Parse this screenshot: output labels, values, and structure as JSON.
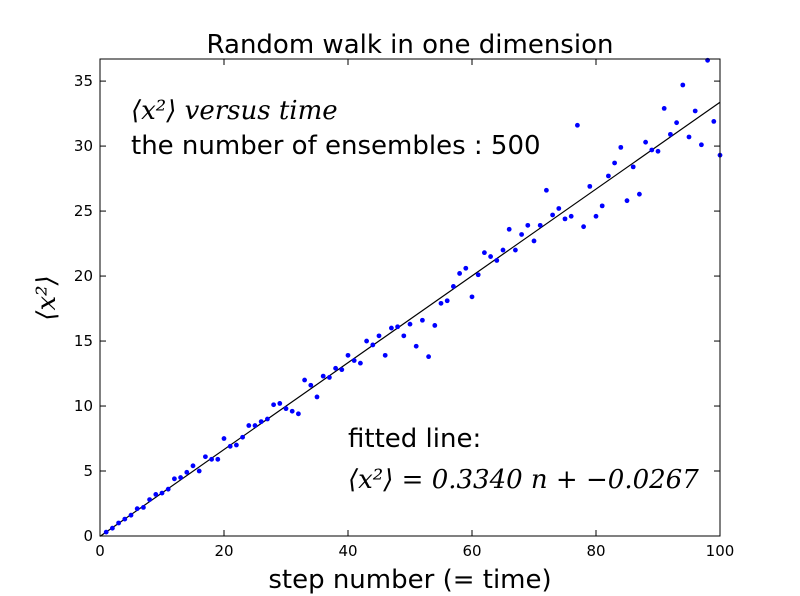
{
  "chart_data": {
    "type": "scatter",
    "title": "Random walk in one dimension",
    "xlabel": "step number (= time)",
    "ylabel": "⟨x²⟩",
    "xlim": [
      0,
      100
    ],
    "ylim": [
      0,
      36.7
    ],
    "xticks": [
      0,
      20,
      40,
      60,
      80,
      100
    ],
    "yticks": [
      0,
      5,
      10,
      15,
      20,
      25,
      30,
      35
    ],
    "grid": false,
    "colors": {
      "points": "#0000ff",
      "line": "#000000"
    },
    "annotations": {
      "upper_line1": "⟨x²⟩ versus time",
      "upper_line2": "the number of ensembles : 500",
      "fit_line1": "fitted line:",
      "fit_line2": "⟨x²⟩ = 0.3340 n + −0.0267"
    },
    "fit": {
      "slope": 0.334,
      "intercept": -0.0267
    },
    "series": [
      {
        "x": [
          1,
          2,
          3,
          4,
          5,
          6,
          7,
          8,
          9,
          10,
          11,
          12,
          13,
          14,
          15,
          16,
          17,
          18,
          19,
          20,
          21,
          22,
          23,
          24,
          25,
          26,
          27,
          28,
          29,
          30,
          31,
          32,
          33,
          34,
          35,
          36,
          37,
          38,
          39,
          40,
          41,
          42,
          43,
          44,
          45,
          46,
          47,
          48,
          49,
          50,
          51,
          52,
          53,
          54,
          55,
          56,
          57,
          58,
          59,
          60,
          61,
          62,
          63,
          64,
          65,
          66,
          67,
          68,
          69,
          70,
          71,
          72,
          73,
          74,
          75,
          76,
          77,
          78,
          79,
          80,
          81,
          82,
          83,
          84,
          85,
          86,
          87,
          88,
          89,
          90,
          91,
          92,
          93,
          94,
          95,
          96,
          97,
          98,
          99,
          100
        ],
        "y": [
          0.3,
          0.6,
          1.0,
          1.3,
          1.6,
          2.1,
          2.2,
          2.8,
          3.2,
          3.3,
          3.6,
          4.4,
          4.5,
          4.9,
          5.4,
          5.0,
          6.1,
          5.9,
          5.9,
          7.5,
          6.9,
          7.0,
          7.6,
          8.5,
          8.5,
          8.8,
          9.0,
          10.1,
          10.2,
          9.8,
          9.6,
          9.4,
          12.0,
          11.6,
          10.7,
          12.3,
          12.2,
          12.9,
          12.8,
          13.9,
          13.5,
          13.3,
          15.0,
          14.7,
          15.4,
          13.9,
          16.0,
          16.1,
          15.4,
          16.3,
          14.6,
          16.6,
          13.8,
          16.2,
          17.9,
          18.1,
          19.2,
          20.2,
          20.6,
          18.4,
          20.1,
          21.8,
          21.5,
          21.2,
          22.0,
          23.6,
          22.0,
          23.2,
          23.9,
          22.7,
          23.9,
          26.6,
          24.7,
          25.2,
          24.4,
          24.6,
          31.6,
          23.8,
          26.9,
          24.6,
          25.4,
          27.7,
          28.7,
          29.9,
          25.8,
          28.4,
          26.3,
          30.3,
          29.7,
          29.6,
          32.9,
          30.9,
          31.8,
          34.7,
          30.7,
          32.7,
          30.1,
          36.6,
          31.9,
          29.3
        ]
      }
    ]
  }
}
